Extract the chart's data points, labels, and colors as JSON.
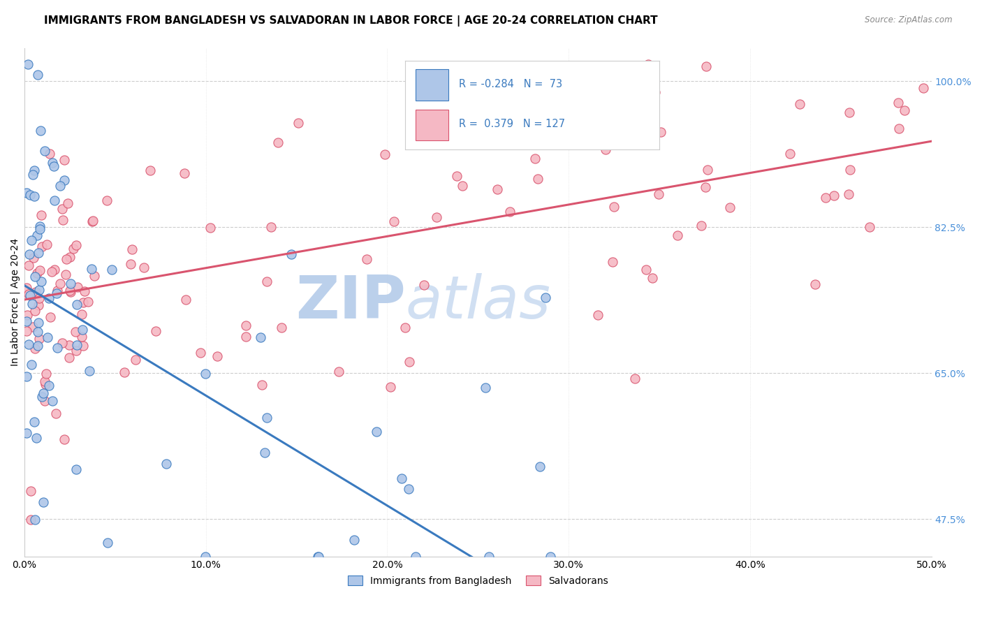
{
  "title": "IMMIGRANTS FROM BANGLADESH VS SALVADORAN IN LABOR FORCE | AGE 20-24 CORRELATION CHART",
  "source": "Source: ZipAtlas.com",
  "ylabel": "In Labor Force | Age 20-24",
  "xlim": [
    0.0,
    0.5
  ],
  "ylim": [
    0.43,
    1.04
  ],
  "xtick_labels": [
    "0.0%",
    "10.0%",
    "20.0%",
    "30.0%",
    "40.0%",
    "50.0%"
  ],
  "xtick_values": [
    0.0,
    0.1,
    0.2,
    0.3,
    0.4,
    0.5
  ],
  "ytick_right_labels": [
    "47.5%",
    "65.0%",
    "82.5%",
    "100.0%"
  ],
  "ytick_right_values": [
    0.475,
    0.65,
    0.825,
    1.0
  ],
  "legend_r_bangladesh": "-0.284",
  "legend_n_bangladesh": "73",
  "legend_r_salvadoran": "0.379",
  "legend_n_salvadoran": "127",
  "color_bangladesh": "#aec6e8",
  "color_salvadoran": "#f5b8c4",
  "color_line_bangladesh": "#3a7abf",
  "color_line_salvadoran": "#d9546e",
  "color_axis_right": "#4a90d9",
  "watermark_zip": "#b8cfe8",
  "watermark_atlas": "#c8daf0",
  "blue_line_intercept": 0.755,
  "blue_line_slope": -1.32,
  "blue_line_solid_end": 0.275,
  "pink_line_intercept": 0.738,
  "pink_line_slope": 0.38,
  "title_fontsize": 11,
  "axis_label_fontsize": 10,
  "tick_fontsize": 10
}
